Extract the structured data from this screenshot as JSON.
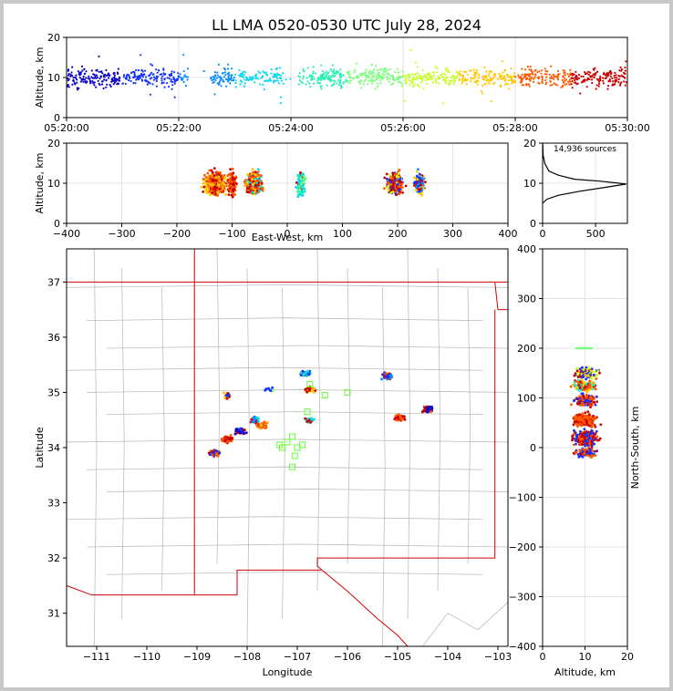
{
  "chart_data": [
    {
      "type": "scatter",
      "title": "LL LMA 0520-0530 UTC July 28, 2024",
      "ylabel": "Altitude, km",
      "xlim": [
        "05:20:00",
        "05:30:00"
      ],
      "ylim": [
        0,
        20
      ],
      "x_ticks": [
        "05:20:00",
        "05:22:00",
        "05:24:00",
        "05:26:00",
        "05:28:00",
        "05:30:00"
      ],
      "y_ticks": [
        "0",
        "10",
        "20"
      ],
      "series": [
        {
          "x_start": "05:20:00",
          "x_end": "05:21:00",
          "color": "#0a00c8",
          "alt_mean": 10
        },
        {
          "x_start": "05:21:00",
          "x_end": "05:22:00",
          "color": "#1433ff",
          "alt_mean": 10
        },
        {
          "x_start": "05:22:00",
          "x_end": "05:23:00",
          "color": "#0a8cff",
          "alt_mean": 10
        },
        {
          "x_start": "05:23:00",
          "x_end": "05:24:00",
          "color": "#0ad7f0",
          "alt_mean": 10
        },
        {
          "x_start": "05:24:00",
          "x_end": "05:25:00",
          "color": "#28f0b4",
          "alt_mean": 10
        },
        {
          "x_start": "05:25:00",
          "x_end": "05:26:00",
          "color": "#78ff78",
          "alt_mean": 10
        },
        {
          "x_start": "05:26:00",
          "x_end": "05:27:00",
          "color": "#c8ff28",
          "alt_mean": 10
        },
        {
          "x_start": "05:27:00",
          "x_end": "05:28:00",
          "color": "#ffc800",
          "alt_mean": 10
        },
        {
          "x_start": "05:28:00",
          "x_end": "05:29:00",
          "color": "#ff5a00",
          "alt_mean": 10
        },
        {
          "x_start": "05:29:00",
          "x_end": "05:30:00",
          "color": "#c80000",
          "alt_mean": 10
        }
      ]
    },
    {
      "type": "scatter",
      "xlabel": "East-West, km",
      "ylabel": "Altitude, km",
      "xlim": [
        -400,
        400
      ],
      "ylim": [
        0,
        20
      ],
      "x_ticks": [
        "−400",
        "−300",
        "−200",
        "−100",
        "0",
        "100",
        "200",
        "300",
        "400"
      ],
      "y_ticks": [
        "0",
        "10",
        "20"
      ],
      "clusters_x_km": [
        -130,
        -70,
        25,
        195,
        240
      ]
    },
    {
      "type": "line",
      "annotation": "14,936 sources",
      "xlim": [
        0,
        800
      ],
      "ylim": [
        0,
        20
      ],
      "x_ticks": [
        "0",
        "500"
      ],
      "y_ticks": [
        "0",
        "10",
        "20"
      ],
      "profile": [
        [
          0,
          5
        ],
        [
          40,
          6
        ],
        [
          150,
          7
        ],
        [
          350,
          8
        ],
        [
          600,
          9
        ],
        [
          790,
          9.8
        ],
        [
          550,
          10.5
        ],
        [
          300,
          11
        ],
        [
          150,
          12
        ],
        [
          60,
          13
        ],
        [
          20,
          15
        ],
        [
          5,
          17
        ],
        [
          1,
          20
        ]
      ]
    },
    {
      "type": "scatter",
      "xlabel": "Longitude",
      "ylabel": "Latitude",
      "xlim": [
        -111.6,
        -102.8
      ],
      "ylim": [
        30.4,
        37.6
      ],
      "x_ticks": [
        "−111",
        "−110",
        "−109",
        "−108",
        "−107",
        "−106",
        "−105",
        "−104",
        "−103"
      ],
      "y_ticks": [
        "31",
        "32",
        "33",
        "34",
        "35",
        "36",
        "37"
      ],
      "clusters": [
        {
          "lon": -108.6,
          "lat": 34.1
        },
        {
          "lon": -108.2,
          "lat": 34.3
        },
        {
          "lon": -107.7,
          "lat": 34.4
        },
        {
          "lon": -107.6,
          "lat": 35.0
        },
        {
          "lon": -106.8,
          "lat": 35.3
        },
        {
          "lon": -105.2,
          "lat": 35.3
        },
        {
          "lon": -105.0,
          "lat": 34.5
        },
        {
          "lon": -104.4,
          "lat": 34.7
        },
        {
          "lon": -108.4,
          "lat": 34.95
        },
        {
          "lon": -106.8,
          "lat": 34.5
        }
      ],
      "stations": [
        [
          -107.1,
          34.2
        ],
        [
          -107.2,
          34.1
        ],
        [
          -107.0,
          34.0
        ],
        [
          -107.3,
          34.0
        ],
        [
          -106.9,
          34.05
        ],
        [
          -107.05,
          33.85
        ],
        [
          -107.1,
          33.65
        ],
        [
          -107.35,
          34.05
        ],
        [
          -106.8,
          34.65
        ],
        [
          -106.45,
          34.95
        ],
        [
          -106.0,
          35.0
        ],
        [
          -106.75,
          35.15
        ]
      ]
    },
    {
      "type": "scatter",
      "xlabel": "Altitude, km",
      "ylabel": "North-South, km",
      "xlim": [
        0,
        20
      ],
      "ylim": [
        -400,
        400
      ],
      "x_ticks": [
        "0",
        "10",
        "20"
      ],
      "y_ticks": [
        "−400",
        "−300",
        "−200",
        "−100",
        "0",
        "100",
        "200",
        "300",
        "400"
      ],
      "ns_range_km": [
        -20,
        200
      ]
    }
  ]
}
